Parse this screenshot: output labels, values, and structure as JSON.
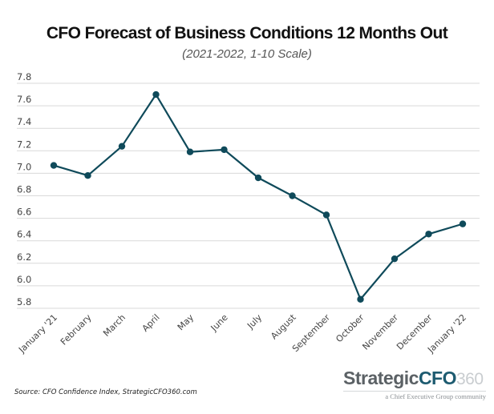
{
  "chart_data": {
    "type": "line",
    "title": "CFO Forecast of Business Conditions 12 Months Out",
    "subtitle": "(2021-2022, 1-10 Scale)",
    "xlabel": "",
    "ylabel": "",
    "categories": [
      "January '21",
      "February",
      "March",
      "April",
      "May",
      "June",
      "July",
      "August",
      "September",
      "October",
      "November",
      "December",
      "January '22"
    ],
    "series": [
      {
        "name": "CFO Forecast of Business Conditions",
        "color": "#0f4a5a",
        "values": [
          7.07,
          6.98,
          7.24,
          7.7,
          7.19,
          7.21,
          6.96,
          6.8,
          6.63,
          5.88,
          6.24,
          6.46,
          6.55
        ]
      }
    ],
    "ylim": [
      5.8,
      7.8
    ],
    "yticks": [
      "5.8",
      "6.0",
      "6.2",
      "6.4",
      "6.6",
      "6.8",
      "7.0",
      "7.2",
      "7.4",
      "7.6",
      "7.8"
    ],
    "grid": true,
    "legend": "none"
  },
  "footer": {
    "source": "Source: CFO Confidence Index, StrategicCFO360.com"
  },
  "logo": {
    "part1": "Strategic",
    "part2": "CFO",
    "part3": "360",
    "tagline": "a Chief Executive Group community"
  },
  "colors": {
    "line": "#0f4a5a",
    "grid": "#d9d9d9",
    "logo_gray": "#5b6165",
    "logo_teal": "#1d5b70"
  }
}
